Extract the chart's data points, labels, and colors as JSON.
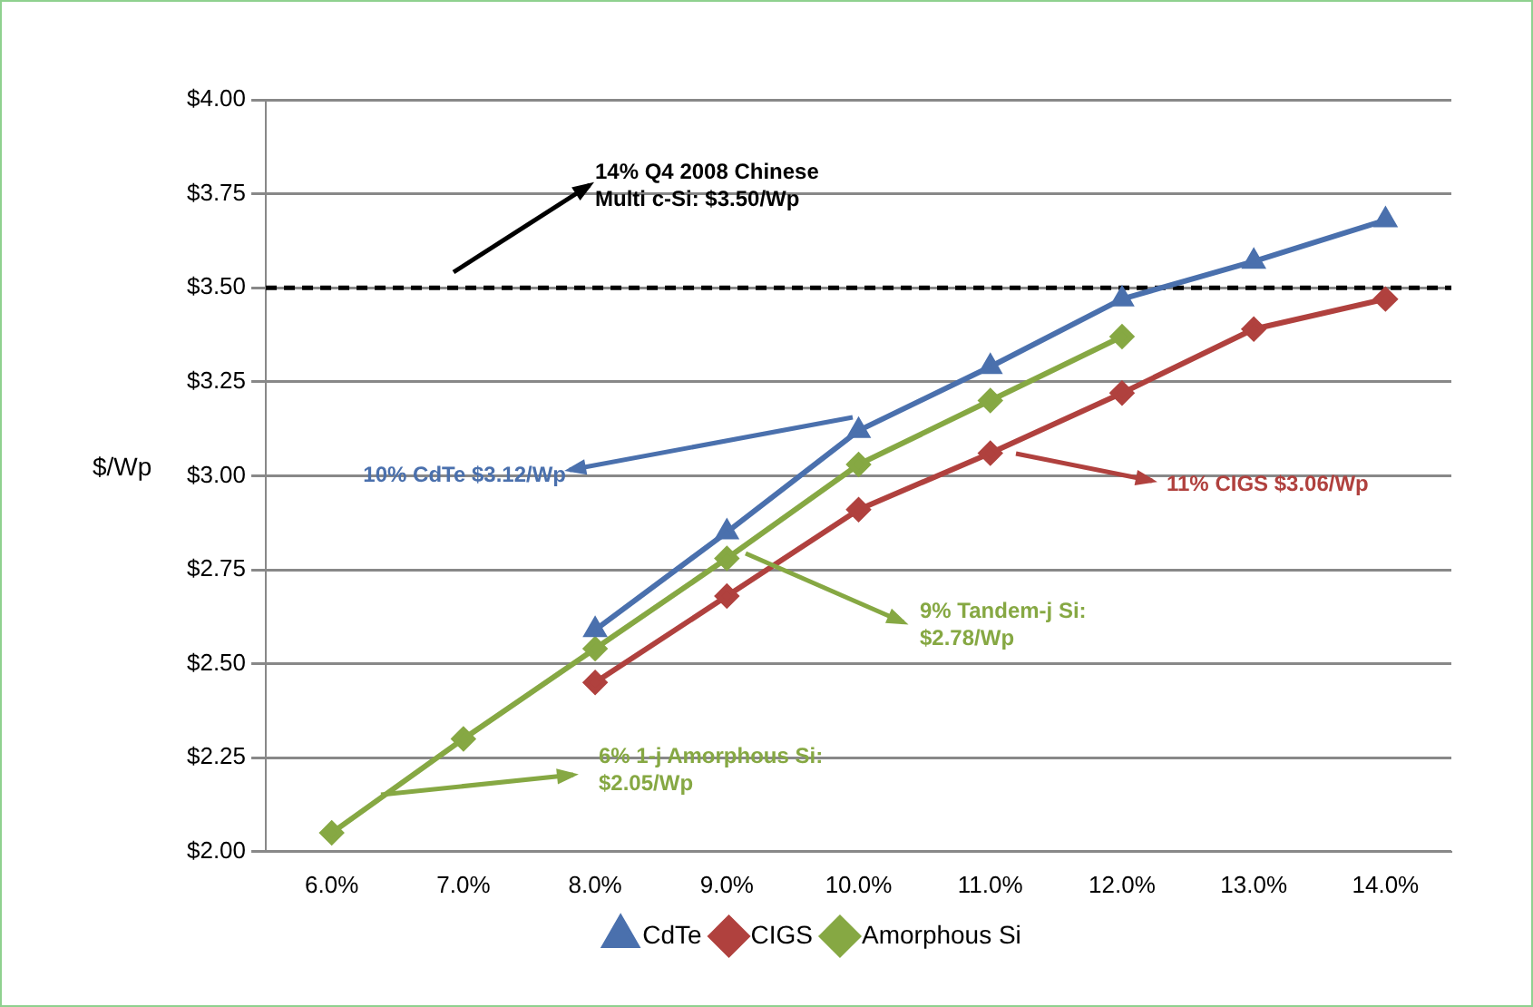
{
  "chart_data": {
    "type": "line",
    "ylabel": "$/Wp",
    "series": [
      {
        "name": "CdTe",
        "color": "#4a70ad",
        "marker": "triangle",
        "x": [
          8,
          9,
          10,
          11,
          12,
          13,
          14
        ],
        "values": [
          2.59,
          2.85,
          3.12,
          3.29,
          3.47,
          3.57,
          3.68
        ]
      },
      {
        "name": "CIGS",
        "color": "#b0413e",
        "marker": "diamond",
        "x": [
          8,
          9,
          10,
          11,
          12,
          13,
          14
        ],
        "values": [
          2.45,
          2.68,
          2.91,
          3.06,
          3.22,
          3.39,
          3.47
        ]
      },
      {
        "name": "Amorphous Si",
        "color": "#86a843",
        "marker": "diamond",
        "x": [
          6,
          7,
          8,
          9,
          10,
          11,
          12
        ],
        "values": [
          2.05,
          2.3,
          2.54,
          2.78,
          3.03,
          3.2,
          3.37
        ]
      }
    ],
    "xlim": [
      5.5,
      14.5
    ],
    "xticks": [
      {
        "value": 6,
        "label": "6.0%"
      },
      {
        "value": 7,
        "label": "7.0%"
      },
      {
        "value": 8,
        "label": "8.0%"
      },
      {
        "value": 9,
        "label": "9.0%"
      },
      {
        "value": 10,
        "label": "10.0%"
      },
      {
        "value": 11,
        "label": "11.0%"
      },
      {
        "value": 12,
        "label": "12.0%"
      },
      {
        "value": 13,
        "label": "13.0%"
      },
      {
        "value": 14,
        "label": "14.0%"
      }
    ],
    "ylim": [
      2,
      4
    ],
    "yticks": [
      {
        "value": 2,
        "label": "$2.00"
      },
      {
        "value": 2.25,
        "label": "$2.25"
      },
      {
        "value": 2.5,
        "label": "$2.50"
      },
      {
        "value": 2.75,
        "label": "$2.75"
      },
      {
        "value": 3,
        "label": "$3.00"
      },
      {
        "value": 3.25,
        "label": "$3.25"
      },
      {
        "value": 3.5,
        "label": "$3.50"
      },
      {
        "value": 3.75,
        "label": "$3.75"
      },
      {
        "value": 4,
        "label": "$4.00"
      }
    ],
    "ref_lines": [
      {
        "axis": "y",
        "value": 3.5,
        "label": "14% Q4 2008 Chinese\nMulti c-Si: $3.50/Wp",
        "color": "#000000",
        "line_style": "dashed"
      }
    ],
    "annotations": [
      "10% CdTe $3.12/Wp",
      "11% CIGS $3.06/Wp",
      "9% Tandem-j Si:\n$2.78/Wp",
      "6% 1-j Amorphous Si:\n$2.05/Wp"
    ],
    "grid": "y",
    "legend": "bottom",
    "line_style": "solid"
  }
}
